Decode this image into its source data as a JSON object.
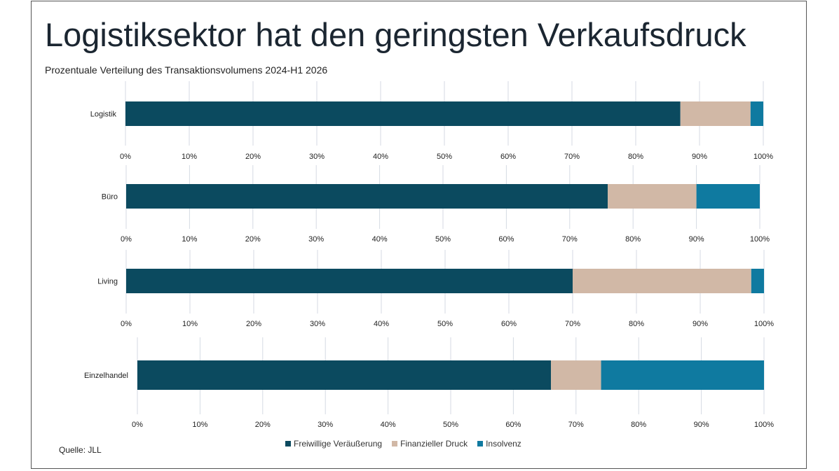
{
  "title": "Logistiksektor hat den geringsten Verkaufsdruck",
  "subtitle": "Prozentuale Verteilung des Transaktionsvolumens 2024-H1 2026",
  "source": "Quelle: JLL",
  "chart_data": {
    "type": "bar",
    "orientation": "horizontal",
    "stacked": true,
    "title": "Logistiksektor hat den geringsten Verkaufsdruck",
    "subtitle": "Prozentuale Verteilung des Transaktionsvolumens 2024-H1 2026",
    "categories": [
      "Logistik",
      "Büro",
      "Living",
      "Einzelhandel"
    ],
    "series": [
      {
        "name": "Freiwillige Veräußerung",
        "color": "#0b4a5f",
        "values": [
          87,
          76,
          70,
          66
        ]
      },
      {
        "name": "Finanzieller Druck",
        "color": "#d1b8a6",
        "values": [
          11,
          14,
          28,
          8
        ]
      },
      {
        "name": "Insolvenz",
        "color": "#0f7aa0",
        "values": [
          2,
          10,
          2,
          26
        ]
      }
    ],
    "xlim": [
      0,
      100
    ],
    "x_ticks": [
      "0%",
      "10%",
      "20%",
      "30%",
      "40%",
      "50%",
      "60%",
      "70%",
      "80%",
      "90%",
      "100%"
    ],
    "grid": true,
    "legend_position": "bottom"
  }
}
